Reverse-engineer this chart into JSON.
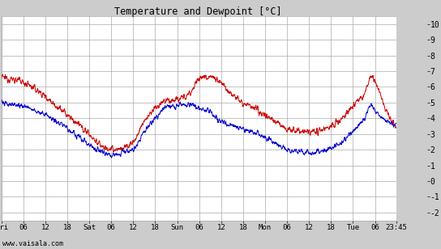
{
  "title": "Temperature and Dewpoint [°C]",
  "ylabel_right_ticks": [
    -2,
    -1,
    0,
    1,
    2,
    3,
    4,
    5,
    6,
    7,
    8,
    9,
    10
  ],
  "ylim": [
    -2.5,
    10.5
  ],
  "watermark": "www.vaisala.com",
  "bg_color": "#cccccc",
  "plot_bg_color": "#ffffff",
  "grid_color": "#aaaaaa",
  "temp_color": "#cc0000",
  "dewp_color": "#0000cc",
  "line_width": 0.7,
  "total_hours": 107.75,
  "n_points": 2000,
  "temp_ctrl_t": [
    0,
    3,
    6,
    9,
    12,
    15,
    18,
    21,
    24,
    27,
    30,
    33,
    36,
    39,
    42,
    45,
    48,
    51,
    54,
    57,
    60,
    63,
    66,
    69,
    72,
    75,
    78,
    81,
    84,
    87,
    90,
    93,
    96,
    99,
    101,
    103,
    105,
    107.75
  ],
  "temp_ctrl_v": [
    6.6,
    6.5,
    6.3,
    5.9,
    5.4,
    4.8,
    4.2,
    3.6,
    3.0,
    2.3,
    2.0,
    2.1,
    2.5,
    3.8,
    4.6,
    5.1,
    5.2,
    5.5,
    6.5,
    6.7,
    6.2,
    5.6,
    5.0,
    4.6,
    4.2,
    3.8,
    3.3,
    3.2,
    3.1,
    3.2,
    3.5,
    4.0,
    4.8,
    5.5,
    6.6,
    5.8,
    4.5,
    3.5
  ],
  "dewp_ctrl_t": [
    0,
    3,
    6,
    9,
    12,
    15,
    18,
    21,
    24,
    27,
    30,
    33,
    36,
    39,
    42,
    45,
    48,
    51,
    54,
    57,
    60,
    63,
    66,
    69,
    72,
    75,
    78,
    81,
    84,
    87,
    90,
    93,
    96,
    99,
    101,
    103,
    105,
    107.75
  ],
  "dewp_ctrl_v": [
    5.0,
    4.9,
    4.8,
    4.5,
    4.2,
    3.8,
    3.4,
    2.8,
    2.3,
    1.9,
    1.7,
    1.8,
    2.0,
    3.1,
    4.0,
    4.7,
    4.8,
    4.9,
    4.6,
    4.4,
    3.8,
    3.5,
    3.3,
    3.1,
    2.8,
    2.4,
    2.0,
    1.9,
    1.8,
    1.9,
    2.1,
    2.5,
    3.2,
    4.0,
    4.8,
    4.2,
    3.8,
    3.6
  ],
  "x_tick_pos": [
    0,
    6,
    12,
    18,
    24,
    30,
    36,
    42,
    48,
    54,
    60,
    66,
    72,
    78,
    84,
    90,
    96,
    102,
    107.75
  ],
  "x_tick_labels": [
    "Fri",
    "06",
    "12",
    "18",
    "Sat",
    "06",
    "12",
    "18",
    "Sun",
    "06",
    "12",
    "18",
    "Mon",
    "06",
    "12",
    "18",
    "Tue",
    "06",
    "23:45"
  ]
}
